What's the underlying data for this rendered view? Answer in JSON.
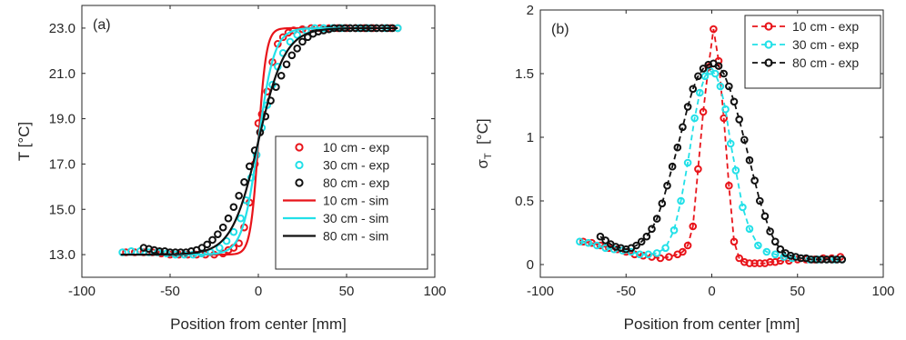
{
  "chart_data": [
    {
      "type": "line",
      "panel_label": "(a)",
      "xlabel": "Position from center [mm]",
      "ylabel": "T [°C]",
      "xlim": [
        -100,
        100
      ],
      "ylim": [
        12,
        24
      ],
      "xticks": [
        -100,
        -50,
        0,
        50,
        100
      ],
      "yticks": [
        13.0,
        15.0,
        17.0,
        19.0,
        21.0,
        23.0
      ],
      "xtick_labels": [
        "-100",
        "-50",
        "0",
        "50",
        "100"
      ],
      "ytick_labels": [
        "13.0",
        "15.0",
        "17.0",
        "19.0",
        "21.0",
        "23.0"
      ],
      "grid": false,
      "legend_position": "bottom-right",
      "series": [
        {
          "name": "10 cm - exp",
          "kind": "markers",
          "color": "#e8141a",
          "x": [
            -75,
            -70,
            -65,
            -60,
            -55,
            -50,
            -45,
            -40,
            -35,
            -30,
            -25,
            -20,
            -17,
            -14,
            -11,
            -8,
            -5,
            -2,
            0,
            2,
            5,
            8,
            11,
            14,
            17,
            20,
            25,
            30,
            35,
            40,
            45,
            50,
            55,
            60,
            65,
            70,
            75,
            79
          ],
          "y": [
            13.1,
            13.1,
            13.1,
            13.1,
            13.05,
            13.0,
            13.0,
            13.0,
            13.0,
            13.0,
            13.0,
            13.05,
            13.2,
            13.3,
            13.5,
            14.2,
            15.3,
            17.0,
            18.8,
            19.2,
            20.2,
            21.5,
            22.3,
            22.6,
            22.8,
            22.9,
            22.95,
            23.0,
            23.0,
            23.0,
            23.0,
            23.0,
            23.0,
            23.0,
            23.0,
            23.0,
            23.0,
            23.0
          ]
        },
        {
          "name": "30 cm - exp",
          "kind": "markers",
          "color": "#22e0e8",
          "x": [
            -77,
            -72,
            -67,
            -62,
            -57,
            -52,
            -47,
            -42,
            -37,
            -32,
            -27,
            -22,
            -18,
            -14,
            -10,
            -7,
            -4,
            -1,
            2,
            5,
            8,
            11,
            14,
            18,
            22,
            27,
            32,
            37,
            42,
            47,
            52,
            57,
            62,
            67,
            72,
            79
          ],
          "y": [
            13.1,
            13.15,
            13.15,
            13.1,
            13.1,
            13.05,
            13.0,
            13.0,
            13.0,
            13.05,
            13.1,
            13.3,
            13.6,
            14.0,
            14.6,
            15.4,
            16.4,
            17.4,
            18.6,
            19.6,
            20.5,
            21.3,
            21.9,
            22.4,
            22.7,
            22.9,
            23.0,
            23.0,
            23.0,
            23.0,
            23.0,
            23.0,
            23.0,
            23.0,
            23.0,
            23.0
          ]
        },
        {
          "name": "80 cm - exp",
          "kind": "markers",
          "color": "#111111",
          "x": [
            -65,
            -62,
            -59,
            -56,
            -53,
            -50,
            -47,
            -44,
            -41,
            -38,
            -35,
            -32,
            -29,
            -26,
            -23,
            -20,
            -17,
            -14,
            -11,
            -8,
            -5,
            -2,
            1,
            4,
            7,
            10,
            13,
            16,
            19,
            22,
            25,
            28,
            31,
            34,
            37,
            40,
            43,
            46,
            49,
            52,
            55,
            58,
            61,
            64,
            67,
            70,
            73,
            76
          ],
          "y": [
            13.3,
            13.25,
            13.2,
            13.15,
            13.15,
            13.1,
            13.1,
            13.1,
            13.1,
            13.15,
            13.2,
            13.3,
            13.45,
            13.65,
            13.9,
            14.2,
            14.6,
            15.1,
            15.6,
            16.2,
            16.9,
            17.6,
            18.4,
            19.1,
            19.8,
            20.4,
            20.9,
            21.4,
            21.8,
            22.1,
            22.4,
            22.6,
            22.75,
            22.85,
            22.9,
            22.95,
            23.0,
            23.0,
            23.0,
            23.0,
            23.0,
            23.0,
            23.0,
            23.0,
            23.0,
            23.0,
            23.0,
            23.0
          ]
        },
        {
          "name": "10 cm - sim",
          "kind": "line",
          "color": "#e8141a",
          "model": "tanh",
          "low": 13.0,
          "high": 23.0,
          "center": 0,
          "width": 4.5,
          "xrange": [
            -78,
            79
          ]
        },
        {
          "name": "30 cm - sim",
          "kind": "line",
          "color": "#22e0e8",
          "model": "tanh",
          "low": 13.0,
          "high": 23.0,
          "center": 0,
          "width": 9,
          "xrange": [
            -78,
            79
          ]
        },
        {
          "name": "80 cm - sim",
          "kind": "line",
          "color": "#111111",
          "model": "tanh",
          "low": 13.0,
          "high": 23.0,
          "center": 0,
          "width": 15,
          "xrange": [
            -78,
            79
          ]
        }
      ]
    },
    {
      "type": "line",
      "panel_label": "(b)",
      "xlabel": "Position from center [mm]",
      "ylabel": "σ_T [°C]",
      "ylabel_main": "σ",
      "ylabel_sub": "T",
      "ylabel_rest": "  [°C]",
      "xlim": [
        -100,
        100
      ],
      "ylim": [
        -0.1,
        2
      ],
      "xticks": [
        -100,
        -50,
        0,
        50,
        100
      ],
      "yticks": [
        0,
        0.5,
        1,
        1.5,
        2
      ],
      "xtick_labels": [
        "-100",
        "-50",
        "0",
        "50",
        "100"
      ],
      "ytick_labels": [
        "0",
        "0.5",
        "1",
        "1.5",
        "2"
      ],
      "grid": false,
      "legend_position": "top-right",
      "series": [
        {
          "name": "10 cm - exp",
          "kind": "markers-dashed",
          "color": "#e8141a",
          "x": [
            -75,
            -70,
            -65,
            -60,
            -55,
            -50,
            -45,
            -40,
            -35,
            -30,
            -25,
            -20,
            -17,
            -14,
            -11,
            -8,
            -5,
            -2,
            1,
            4,
            7,
            10,
            13,
            16,
            19,
            22,
            25,
            28,
            31,
            34,
            37,
            40,
            45,
            50,
            55,
            60,
            65,
            70,
            75
          ],
          "y": [
            0.18,
            0.17,
            0.15,
            0.13,
            0.12,
            0.1,
            0.08,
            0.07,
            0.06,
            0.05,
            0.06,
            0.08,
            0.1,
            0.15,
            0.3,
            0.75,
            1.2,
            1.55,
            1.85,
            1.6,
            1.15,
            0.62,
            0.18,
            0.05,
            0.02,
            0.01,
            0.01,
            0.01,
            0.01,
            0.02,
            0.02,
            0.03,
            0.03,
            0.04,
            0.04,
            0.04,
            0.05,
            0.05,
            0.06
          ]
        },
        {
          "name": "30 cm - exp",
          "kind": "markers-dashed",
          "color": "#22e0e8",
          "x": [
            -77,
            -72,
            -67,
            -62,
            -57,
            -52,
            -47,
            -42,
            -37,
            -32,
            -27,
            -22,
            -18,
            -14,
            -10,
            -7,
            -4,
            -1,
            2,
            5,
            8,
            11,
            14,
            18,
            22,
            27,
            32,
            37,
            42,
            47,
            52,
            57,
            62,
            67,
            72,
            76
          ],
          "y": [
            0.18,
            0.17,
            0.15,
            0.13,
            0.12,
            0.11,
            0.1,
            0.08,
            0.08,
            0.09,
            0.13,
            0.27,
            0.5,
            0.8,
            1.15,
            1.35,
            1.48,
            1.52,
            1.5,
            1.4,
            1.22,
            0.95,
            0.74,
            0.45,
            0.28,
            0.15,
            0.1,
            0.08,
            0.06,
            0.05,
            0.05,
            0.04,
            0.04,
            0.04,
            0.04,
            0.04
          ]
        },
        {
          "name": "80 cm - exp",
          "kind": "markers-dashed",
          "color": "#111111",
          "x": [
            -65,
            -62,
            -59,
            -56,
            -53,
            -50,
            -47,
            -44,
            -41,
            -38,
            -35,
            -32,
            -29,
            -26,
            -23,
            -20,
            -17,
            -14,
            -11,
            -8,
            -5,
            -2,
            1,
            4,
            7,
            10,
            13,
            16,
            19,
            22,
            25,
            28,
            31,
            34,
            37,
            40,
            43,
            46,
            49,
            52,
            55,
            58,
            61,
            64,
            67,
            70,
            73,
            76
          ],
          "y": [
            0.22,
            0.19,
            0.16,
            0.14,
            0.13,
            0.12,
            0.13,
            0.15,
            0.18,
            0.22,
            0.28,
            0.36,
            0.48,
            0.62,
            0.77,
            0.92,
            1.08,
            1.24,
            1.38,
            1.48,
            1.54,
            1.57,
            1.58,
            1.56,
            1.5,
            1.4,
            1.28,
            1.14,
            0.98,
            0.82,
            0.66,
            0.5,
            0.38,
            0.26,
            0.18,
            0.12,
            0.09,
            0.07,
            0.06,
            0.05,
            0.05,
            0.04,
            0.04,
            0.04,
            0.04,
            0.04,
            0.04,
            0.04
          ]
        }
      ]
    }
  ]
}
